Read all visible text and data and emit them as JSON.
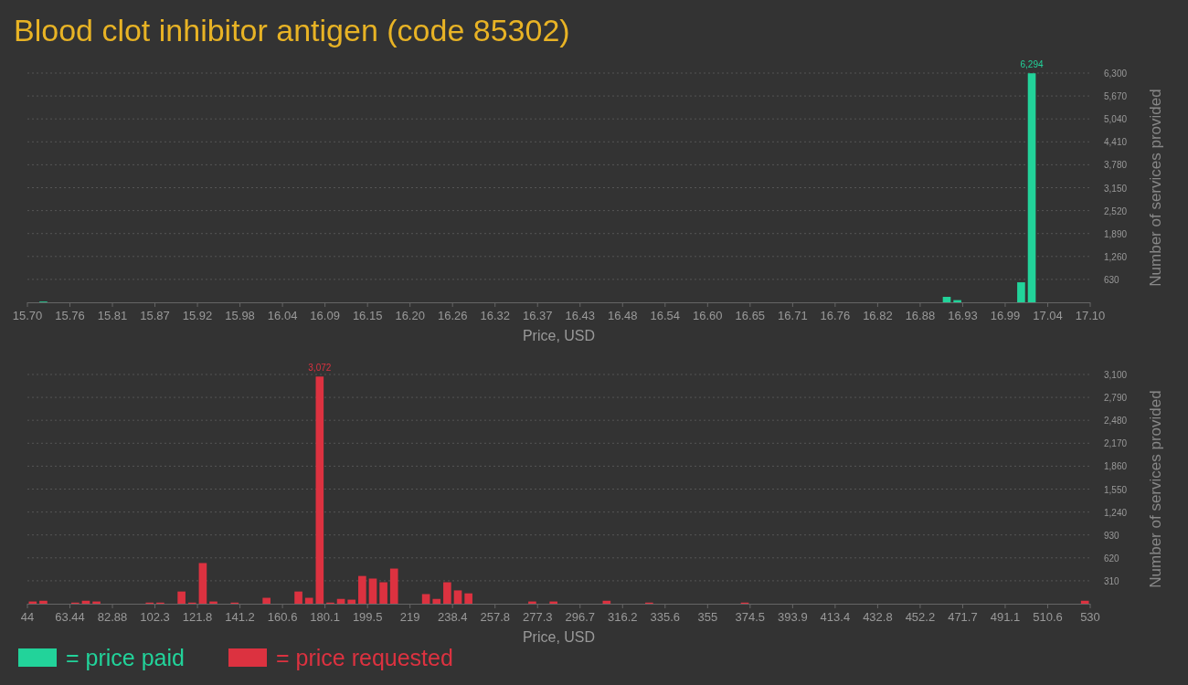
{
  "chart_data": [
    {
      "type": "histogram",
      "title": "Blood clot inhibitor antigen (code 85302)",
      "xlabel": "Price, USD",
      "ylabel": "Number of services provided",
      "bins": [
        15.7,
        15.714,
        15.728,
        15.742,
        15.756,
        15.77,
        15.784,
        15.798,
        15.812,
        15.826,
        15.84,
        15.854,
        15.868,
        15.882,
        15.896,
        15.91,
        15.924,
        15.938,
        15.952,
        15.966,
        15.98,
        15.994,
        16.008,
        16.022,
        16.036,
        16.05,
        16.064,
        16.078,
        16.092,
        16.106,
        16.12,
        16.134,
        16.148,
        16.162,
        16.176,
        16.19,
        16.204,
        16.218,
        16.232,
        16.246,
        16.26,
        16.274,
        16.288,
        16.302,
        16.316,
        16.33,
        16.344,
        16.358,
        16.372,
        16.386,
        16.4,
        16.414,
        16.428,
        16.442,
        16.456,
        16.47,
        16.484,
        16.498,
        16.512,
        16.526,
        16.54,
        16.554,
        16.568,
        16.582,
        16.596,
        16.61,
        16.624,
        16.638,
        16.652,
        16.666,
        16.68,
        16.694,
        16.708,
        16.722,
        16.736,
        16.75,
        16.764,
        16.778,
        16.792,
        16.806,
        16.82,
        16.834,
        16.848,
        16.862,
        16.876,
        16.89,
        16.904,
        16.918,
        16.932,
        16.946,
        16.96,
        16.974,
        16.988,
        17.002,
        17.016,
        17.03,
        17.044,
        17.058,
        17.072,
        17.086,
        17.1
      ],
      "series": [
        {
          "name": "= price paid",
          "color": "#22d39a",
          "values": [
            0,
            20,
            0,
            0,
            0,
            0,
            0,
            0,
            0,
            0,
            0,
            0,
            0,
            0,
            0,
            0,
            0,
            0,
            0,
            0,
            0,
            0,
            0,
            0,
            0,
            0,
            0,
            0,
            0,
            0,
            0,
            0,
            0,
            0,
            0,
            0,
            0,
            0,
            0,
            0,
            0,
            0,
            0,
            0,
            0,
            0,
            0,
            0,
            0,
            0,
            0,
            0,
            0,
            0,
            0,
            0,
            0,
            0,
            0,
            0,
            0,
            0,
            0,
            0,
            0,
            0,
            0,
            0,
            0,
            0,
            0,
            0,
            0,
            0,
            0,
            0,
            0,
            0,
            0,
            0,
            0,
            0,
            0,
            0,
            0,
            0,
            150,
            60,
            0,
            0,
            0,
            0,
            0,
            550,
            6294,
            0,
            0,
            0,
            0,
            0
          ],
          "value_labels": [
            null,
            null,
            null,
            null,
            null,
            null,
            null,
            null,
            null,
            null,
            null,
            null,
            null,
            null,
            null,
            null,
            null,
            null,
            null,
            null,
            null,
            null,
            null,
            null,
            null,
            null,
            null,
            null,
            null,
            null,
            null,
            null,
            null,
            null,
            null,
            null,
            null,
            null,
            null,
            null,
            null,
            null,
            null,
            null,
            null,
            null,
            null,
            null,
            null,
            null,
            null,
            null,
            null,
            null,
            null,
            null,
            null,
            null,
            null,
            null,
            null,
            null,
            null,
            null,
            null,
            null,
            null,
            null,
            null,
            null,
            null,
            null,
            null,
            null,
            null,
            null,
            null,
            null,
            null,
            null,
            null,
            null,
            null,
            null,
            null,
            null,
            null,
            null,
            null,
            null,
            null,
            null,
            null,
            null,
            "6,294",
            null,
            null,
            null,
            null,
            null
          ]
        }
      ],
      "xlim": [
        15.7,
        17.1
      ],
      "xticks": [
        {
          "value": 15.7,
          "label": "15.70"
        },
        {
          "value": 15.756,
          "label": "15.76"
        },
        {
          "value": 15.812,
          "label": "15.81"
        },
        {
          "value": 15.868,
          "label": "15.87"
        },
        {
          "value": 15.924,
          "label": "15.92"
        },
        {
          "value": 15.98,
          "label": "15.98"
        },
        {
          "value": 16.036,
          "label": "16.04"
        },
        {
          "value": 16.092,
          "label": "16.09"
        },
        {
          "value": 16.148,
          "label": "16.15"
        },
        {
          "value": 16.204,
          "label": "16.20"
        },
        {
          "value": 16.26,
          "label": "16.26"
        },
        {
          "value": 16.316,
          "label": "16.32"
        },
        {
          "value": 16.372,
          "label": "16.37"
        },
        {
          "value": 16.428,
          "label": "16.43"
        },
        {
          "value": 16.484,
          "label": "16.48"
        },
        {
          "value": 16.54,
          "label": "16.54"
        },
        {
          "value": 16.596,
          "label": "16.60"
        },
        {
          "value": 16.652,
          "label": "16.65"
        },
        {
          "value": 16.708,
          "label": "16.71"
        },
        {
          "value": 16.764,
          "label": "16.76"
        },
        {
          "value": 16.82,
          "label": "16.82"
        },
        {
          "value": 16.876,
          "label": "16.88"
        },
        {
          "value": 16.932,
          "label": "16.93"
        },
        {
          "value": 16.988,
          "label": "16.99"
        },
        {
          "value": 17.044,
          "label": "17.04"
        },
        {
          "value": 17.1,
          "label": "17.10"
        }
      ],
      "ylim": [
        0,
        6300
      ],
      "yticks": [
        630,
        {
          "value": 1260,
          "label": "1,260"
        },
        {
          "value": 1890,
          "label": "1,890"
        },
        {
          "value": 2520,
          "label": "2,520"
        },
        {
          "value": 3150,
          "label": "3,150"
        },
        {
          "value": 3780,
          "label": "3,780"
        },
        {
          "value": 4410,
          "label": "4,410"
        },
        {
          "value": 5040,
          "label": "5,040"
        },
        {
          "value": 5670,
          "label": "5,670"
        },
        {
          "value": 6300,
          "label": "6,300"
        }
      ],
      "grid": "y",
      "legend": "bottom left"
    },
    {
      "type": "histogram",
      "xlabel": "Price, USD",
      "ylabel": "Number of services provided",
      "bins": [
        44,
        48.86,
        53.72,
        58.58,
        63.44,
        68.3,
        73.16,
        78.02,
        82.88,
        87.74,
        92.6,
        97.46,
        102.32,
        107.18,
        112.04,
        116.9,
        121.76,
        126.62,
        131.48,
        136.34,
        141.2,
        146.06,
        150.92,
        155.78,
        160.64,
        165.5,
        170.36,
        175.22,
        180.08,
        184.94,
        189.8,
        194.66,
        199.52,
        204.38,
        209.24,
        214.1,
        218.96,
        223.82,
        228.68,
        233.54,
        238.4,
        243.26,
        248.12,
        252.98,
        257.84,
        262.7,
        267.56,
        272.42,
        277.28,
        282.14,
        287,
        291.86,
        296.72,
        301.58,
        306.44,
        311.3,
        316.16,
        321.02,
        325.88,
        330.74,
        335.6,
        340.46,
        345.32,
        350.18,
        355.04,
        359.9,
        364.76,
        369.62,
        374.48,
        379.34,
        384.2,
        389.06,
        393.92,
        398.78,
        403.64,
        408.5,
        413.36,
        418.22,
        423.08,
        427.94,
        432.8,
        437.66,
        442.52,
        447.38,
        452.24,
        457.1,
        461.96,
        466.82,
        471.68,
        476.54,
        481.4,
        486.26,
        491.12,
        495.98,
        500.84,
        505.7,
        510.56,
        515.42,
        520.28,
        525.14,
        530
      ],
      "series": [
        {
          "name": "= price requested",
          "color": "#dc3240",
          "values": [
            30,
            40,
            0,
            0,
            15,
            40,
            30,
            0,
            0,
            0,
            0,
            15,
            15,
            0,
            165,
            15,
            550,
            30,
            0,
            15,
            0,
            0,
            80,
            0,
            0,
            165,
            80,
            3072,
            15,
            65,
            55,
            375,
            340,
            290,
            475,
            0,
            0,
            130,
            65,
            290,
            180,
            140,
            0,
            0,
            0,
            0,
            0,
            30,
            0,
            30,
            0,
            0,
            0,
            0,
            40,
            0,
            0,
            0,
            15,
            0,
            0,
            0,
            0,
            0,
            0,
            0,
            0,
            15,
            0,
            0,
            0,
            0,
            0,
            0,
            0,
            0,
            0,
            0,
            0,
            0,
            0,
            0,
            0,
            0,
            0,
            0,
            0,
            0,
            0,
            0,
            0,
            0,
            0,
            0,
            0,
            0,
            0,
            0,
            0,
            40
          ],
          "value_labels": [
            null,
            null,
            null,
            null,
            null,
            null,
            null,
            null,
            null,
            null,
            null,
            null,
            null,
            null,
            null,
            null,
            null,
            null,
            null,
            null,
            null,
            null,
            null,
            null,
            null,
            null,
            null,
            "3,072",
            null,
            null,
            null,
            null,
            null,
            null,
            null,
            null,
            null,
            null,
            null,
            null,
            null,
            null,
            null,
            null,
            null,
            null,
            null,
            null,
            null,
            null,
            null,
            null,
            null,
            null,
            null,
            null,
            null,
            null,
            null,
            null,
            null,
            null,
            null,
            null,
            null,
            null,
            null,
            null,
            null,
            null,
            null,
            null,
            null,
            null,
            null,
            null,
            null,
            null,
            null,
            null,
            null,
            null,
            null,
            null,
            null,
            null,
            null,
            null,
            null,
            null,
            null,
            null,
            null,
            null,
            null,
            null,
            null,
            null,
            null,
            null
          ]
        }
      ],
      "xlim": [
        44,
        530
      ],
      "xticks": [
        44,
        63.44,
        82.88,
        {
          "value": 102.32,
          "label": "102.3"
        },
        {
          "value": 121.76,
          "label": "121.8"
        },
        141.2,
        {
          "value": 160.64,
          "label": "160.6"
        },
        {
          "value": 180.08,
          "label": "180.1"
        },
        {
          "value": 199.52,
          "label": "199.5"
        },
        {
          "value": 218.96,
          "label": "219"
        },
        238.4,
        {
          "value": 257.84,
          "label": "257.8"
        },
        {
          "value": 277.28,
          "label": "277.3"
        },
        {
          "value": 296.72,
          "label": "296.7"
        },
        {
          "value": 316.16,
          "label": "316.2"
        },
        335.6,
        {
          "value": 355.04,
          "label": "355"
        },
        {
          "value": 374.48,
          "label": "374.5"
        },
        {
          "value": 393.92,
          "label": "393.9"
        },
        {
          "value": 413.36,
          "label": "413.4"
        },
        432.8,
        {
          "value": 452.24,
          "label": "452.2"
        },
        {
          "value": 471.68,
          "label": "471.7"
        },
        {
          "value": 491.12,
          "label": "491.1"
        },
        {
          "value": 510.56,
          "label": "510.6"
        },
        530
      ],
      "ylim": [
        0,
        3100
      ],
      "yticks": [
        310,
        620,
        930,
        {
          "value": 1240,
          "label": "1,240"
        },
        {
          "value": 1550,
          "label": "1,550"
        },
        {
          "value": 1860,
          "label": "1,860"
        },
        {
          "value": 2170,
          "label": "2,170"
        },
        {
          "value": 2480,
          "label": "2,480"
        },
        {
          "value": 2790,
          "label": "2,790"
        },
        {
          "value": 3100,
          "label": "3,100"
        }
      ],
      "grid": "y",
      "legend": "bottom left"
    }
  ]
}
